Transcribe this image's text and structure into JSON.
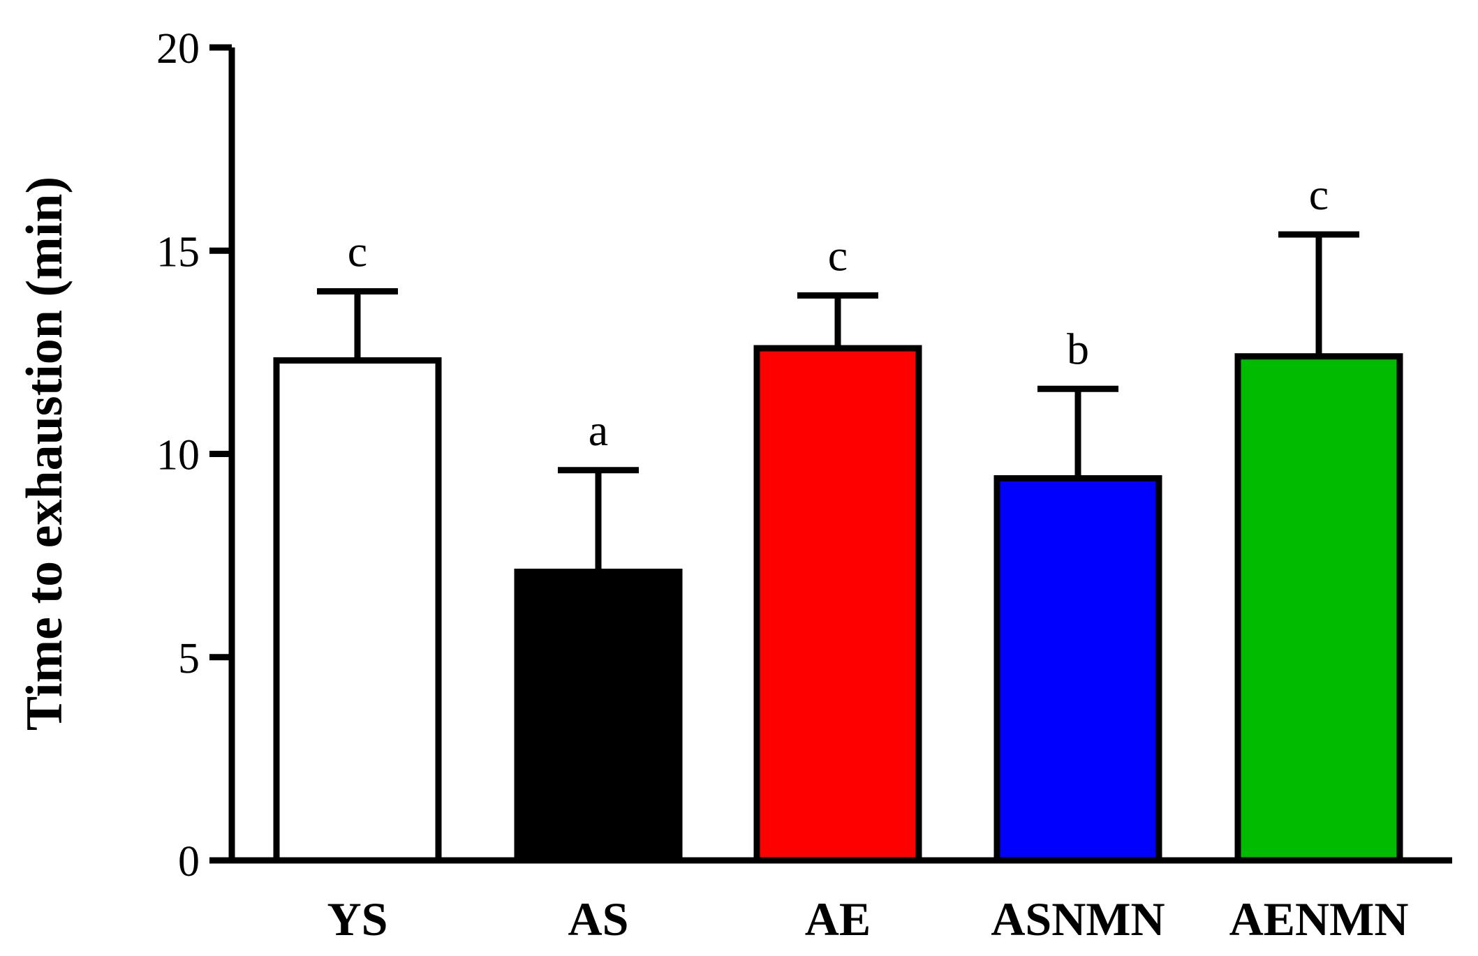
{
  "chart_data": {
    "type": "bar",
    "ylabel": "Time to exhaustion (min)",
    "xlabel": "",
    "ylim": [
      0,
      20
    ],
    "yticks": [
      0,
      5,
      10,
      15,
      20
    ],
    "categories": [
      "YS",
      "AS",
      "AE",
      "ASNMN",
      "AENMN"
    ],
    "values": [
      12.3,
      7.1,
      12.6,
      9.4,
      12.4
    ],
    "errors": [
      1.7,
      2.5,
      1.3,
      2.2,
      3.0
    ],
    "significance": [
      "c",
      "a",
      "c",
      "b",
      "c"
    ],
    "colors": [
      "#ffffff",
      "#000000",
      "#ff0000",
      "#0000ff",
      "#00bb00"
    ],
    "grid": false,
    "legend": "none"
  }
}
